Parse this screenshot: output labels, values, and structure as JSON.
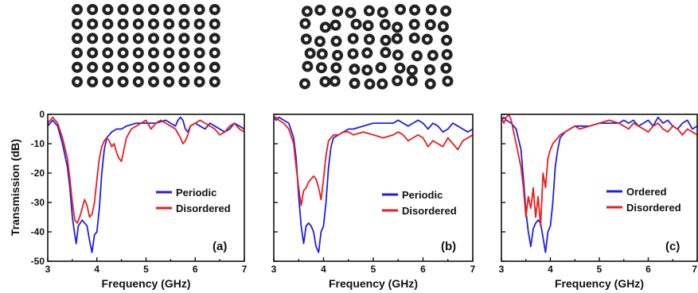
{
  "colors": {
    "blue": "#1f1fe6",
    "red": "#e61f1f",
    "rod": "#222222"
  },
  "arrays": [
    {
      "name": "periodic-array",
      "rows": 6,
      "cols": 10
    },
    {
      "name": "disordered-array",
      "rows": 6,
      "cols": 10
    }
  ],
  "chart_data": [
    {
      "type": "line",
      "panel_label": "(a)",
      "xlabel": "Frequency (GHz)",
      "ylabel": "Transmission (dB)",
      "xlim": [
        3,
        7
      ],
      "ylim": [
        -50,
        0
      ],
      "xticks": [
        "3",
        "4",
        "5",
        "6",
        "7"
      ],
      "yticks": [
        "0",
        "-10",
        "-20",
        "-30",
        "-40",
        "-50"
      ],
      "legend": "center-right",
      "series": [
        {
          "name": "Periodic",
          "color": "#1f1fe6",
          "x": [
            3.0,
            3.05,
            3.1,
            3.2,
            3.3,
            3.4,
            3.45,
            3.5,
            3.55,
            3.58,
            3.62,
            3.66,
            3.7,
            3.75,
            3.8,
            3.85,
            3.9,
            3.95,
            4.0,
            4.05,
            4.1,
            4.15,
            4.2,
            4.3,
            4.4,
            4.5,
            4.6,
            4.8,
            5.0,
            5.2,
            5.4,
            5.5,
            5.6,
            5.65,
            5.7,
            5.75,
            5.8,
            5.85,
            5.9,
            6.0,
            6.1,
            6.2,
            6.3,
            6.4,
            6.5,
            6.6,
            6.7,
            6.8,
            6.9,
            7.0
          ],
          "y": [
            -4,
            -3,
            -2,
            -4,
            -10,
            -18,
            -25,
            -35,
            -41,
            -44,
            -38,
            -37,
            -36,
            -37,
            -38,
            -43,
            -47,
            -41,
            -40,
            -32,
            -20,
            -12,
            -8,
            -6,
            -5,
            -5,
            -4,
            -3,
            -3,
            -3,
            -2,
            -3,
            -4,
            -2,
            -1,
            -2,
            -5,
            -6,
            -4,
            -3,
            -4,
            -5,
            -3,
            -4,
            -5,
            -6,
            -5,
            -3,
            -4,
            -5
          ]
        },
        {
          "name": "Disordered",
          "color": "#e61f1f",
          "x": [
            3.0,
            3.05,
            3.1,
            3.2,
            3.3,
            3.4,
            3.45,
            3.5,
            3.55,
            3.6,
            3.65,
            3.7,
            3.75,
            3.8,
            3.85,
            3.9,
            3.95,
            4.0,
            4.05,
            4.1,
            4.15,
            4.2,
            4.25,
            4.3,
            4.35,
            4.4,
            4.45,
            4.5,
            4.55,
            4.6,
            4.7,
            4.8,
            4.9,
            5.0,
            5.1,
            5.2,
            5.3,
            5.4,
            5.5,
            5.6,
            5.7,
            5.75,
            5.8,
            5.85,
            5.9,
            6.0,
            6.1,
            6.2,
            6.3,
            6.4,
            6.5,
            6.6,
            6.7,
            6.8,
            6.9,
            7.0
          ],
          "y": [
            -3,
            -2,
            -1,
            -3,
            -8,
            -15,
            -22,
            -30,
            -36,
            -37,
            -35,
            -32,
            -29,
            -31,
            -35,
            -34,
            -30,
            -22,
            -15,
            -11,
            -9,
            -8,
            -9,
            -11,
            -10,
            -13,
            -15,
            -16,
            -12,
            -8,
            -5,
            -4,
            -3,
            -2,
            -5,
            -3,
            -2,
            -3,
            -4,
            -5,
            -8,
            -10,
            -9,
            -7,
            -4,
            -3,
            -2,
            -3,
            -4,
            -5,
            -7,
            -6,
            -4,
            -3,
            -5,
            -6
          ]
        }
      ]
    },
    {
      "type": "line",
      "panel_label": "(b)",
      "xlabel": "Frequency (GHz)",
      "ylabel": "",
      "xlim": [
        3,
        7
      ],
      "ylim": [
        -50,
        0
      ],
      "xticks": [
        "3",
        "4",
        "5",
        "6",
        "7"
      ],
      "yticks": [],
      "legend": "center-right",
      "series": [
        {
          "name": "Periodic",
          "color": "#1f1fe6",
          "x": [
            3.0,
            3.05,
            3.1,
            3.2,
            3.3,
            3.4,
            3.45,
            3.5,
            3.55,
            3.6,
            3.65,
            3.7,
            3.75,
            3.8,
            3.85,
            3.9,
            3.95,
            4.0,
            4.05,
            4.1,
            4.15,
            4.2,
            4.3,
            4.4,
            4.5,
            4.6,
            4.8,
            5.0,
            5.2,
            5.4,
            5.5,
            5.6,
            5.7,
            5.8,
            5.9,
            6.0,
            6.1,
            6.2,
            6.3,
            6.4,
            6.5,
            6.6,
            6.7,
            6.8,
            6.9,
            7.0
          ],
          "y": [
            -1,
            -2,
            -1,
            -2,
            -3,
            -8,
            -15,
            -28,
            -38,
            -44,
            -38,
            -37,
            -38,
            -40,
            -45,
            -47,
            -40,
            -38,
            -30,
            -18,
            -11,
            -8,
            -7,
            -6,
            -5,
            -5,
            -4,
            -3,
            -3,
            -3,
            -2,
            -3,
            -4,
            -3,
            -2,
            -3,
            -5,
            -3,
            -4,
            -6,
            -5,
            -3,
            -4,
            -5,
            -6,
            -5
          ]
        },
        {
          "name": "Disordered",
          "color": "#e61f1f",
          "x": [
            3.0,
            3.05,
            3.1,
            3.2,
            3.3,
            3.4,
            3.45,
            3.5,
            3.55,
            3.6,
            3.65,
            3.7,
            3.75,
            3.8,
            3.85,
            3.9,
            3.95,
            4.0,
            4.05,
            4.1,
            4.15,
            4.2,
            4.3,
            4.4,
            4.5,
            4.6,
            4.8,
            5.0,
            5.2,
            5.4,
            5.5,
            5.6,
            5.7,
            5.8,
            5.9,
            6.0,
            6.1,
            6.2,
            6.3,
            6.4,
            6.5,
            6.6,
            6.7,
            6.8,
            6.9,
            7.0
          ],
          "y": [
            -1,
            -1,
            -2,
            -3,
            -5,
            -10,
            -18,
            -25,
            -31,
            -26,
            -25,
            -23,
            -22,
            -21,
            -22,
            -25,
            -29,
            -22,
            -14,
            -9,
            -8,
            -7,
            -7,
            -6,
            -6,
            -7,
            -6,
            -7,
            -8,
            -7,
            -6,
            -7,
            -9,
            -8,
            -7,
            -8,
            -11,
            -9,
            -10,
            -11,
            -8,
            -10,
            -12,
            -9,
            -8,
            -7
          ]
        }
      ]
    },
    {
      "type": "line",
      "panel_label": "(c)",
      "xlabel": "Frequency (GHz)",
      "ylabel": "",
      "xlim": [
        3,
        7
      ],
      "ylim": [
        -50,
        0
      ],
      "xticks": [
        "3",
        "4",
        "5",
        "6",
        "7"
      ],
      "yticks": [],
      "legend": "center-right",
      "series": [
        {
          "name": "Ordered",
          "color": "#1f1fe6",
          "x": [
            3.0,
            3.05,
            3.1,
            3.2,
            3.3,
            3.4,
            3.45,
            3.5,
            3.55,
            3.6,
            3.65,
            3.7,
            3.75,
            3.8,
            3.85,
            3.9,
            3.95,
            4.0,
            4.05,
            4.1,
            4.15,
            4.2,
            4.3,
            4.4,
            4.5,
            4.6,
            4.8,
            5.0,
            5.2,
            5.4,
            5.5,
            5.6,
            5.7,
            5.8,
            5.9,
            6.0,
            6.1,
            6.2,
            6.3,
            6.4,
            6.5,
            6.6,
            6.7,
            6.8,
            6.9,
            7.0
          ],
          "y": [
            -2,
            -1,
            -2,
            -3,
            -5,
            -12,
            -22,
            -33,
            -40,
            -45,
            -39,
            -37,
            -36,
            -37,
            -42,
            -47,
            -40,
            -38,
            -30,
            -18,
            -12,
            -8,
            -6,
            -5,
            -4,
            -4,
            -4,
            -3,
            -3,
            -3,
            -2,
            -3,
            -2,
            -4,
            -3,
            -2,
            -4,
            -1,
            -3,
            -2,
            -4,
            -5,
            -3,
            -2,
            -5,
            -4
          ]
        },
        {
          "name": "Disordered",
          "color": "#e61f1f",
          "x": [
            3.0,
            3.05,
            3.1,
            3.15,
            3.2,
            3.25,
            3.3,
            3.4,
            3.45,
            3.5,
            3.55,
            3.6,
            3.65,
            3.7,
            3.75,
            3.8,
            3.85,
            3.9,
            3.95,
            4.0,
            4.05,
            4.1,
            4.15,
            4.2,
            4.3,
            4.4,
            4.5,
            4.6,
            4.8,
            5.0,
            5.2,
            5.4,
            5.5,
            5.6,
            5.7,
            5.8,
            5.9,
            6.0,
            6.1,
            6.2,
            6.3,
            6.4,
            6.5,
            6.6,
            6.7,
            6.8,
            6.9,
            7.0
          ],
          "y": [
            -1,
            -3,
            -1,
            0,
            -2,
            -6,
            -10,
            -18,
            -25,
            -35,
            -28,
            -32,
            -25,
            -35,
            -28,
            -38,
            -20,
            -25,
            -15,
            -12,
            -10,
            -9,
            -8,
            -7,
            -6,
            -5,
            -4,
            -5,
            -4,
            -3,
            -2,
            -3,
            -4,
            -5,
            -3,
            -4,
            -5,
            -6,
            -4,
            -3,
            -5,
            -6,
            -4,
            -5,
            -7,
            -5,
            -6,
            -7
          ]
        }
      ]
    }
  ]
}
